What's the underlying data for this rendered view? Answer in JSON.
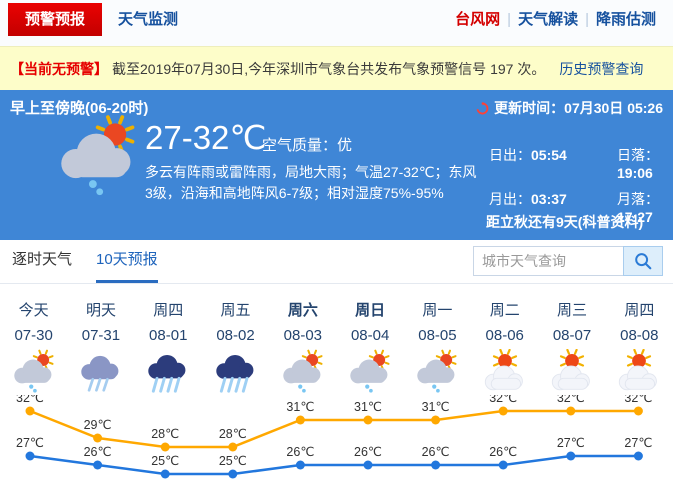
{
  "nav": {
    "tabs": [
      {
        "label": "预警预报",
        "active": true
      },
      {
        "label": "天气监测",
        "active": false
      }
    ],
    "links": [
      {
        "label": "台风网",
        "accent": "red"
      },
      {
        "label": "天气解读",
        "accent": "blue"
      },
      {
        "label": "降雨估测",
        "accent": "blue"
      }
    ]
  },
  "alert_bar": {
    "badge": "【当前无预警】",
    "text": "截至2019年07月30日,今年深圳市气象台共发布气象预警信号 197 次。",
    "link": "历史预警查询"
  },
  "current": {
    "period_title": "早上至傍晚(06-20时)",
    "update_label": "更新时间：",
    "update_value": "07月30日 05:26",
    "temp_range": "27-32℃",
    "air_quality": "空气质量：优",
    "description": "多云有阵雨或雷阵雨，局地大雨；气温27-32℃；东风3级，沿海和高地阵风6-7级；相对湿度75%-95%",
    "weather_icon": "sun-shower",
    "sun_moon": [
      {
        "label": "日出：",
        "value": "05:54"
      },
      {
        "label": "日落：",
        "value": "19:06"
      },
      {
        "label": "月出：",
        "value": "03:37"
      },
      {
        "label": "月落：",
        "value": "17:27"
      }
    ],
    "solar_term_note": "距立秋还有9天(科普资料)"
  },
  "tabs_bar": {
    "tabs": [
      {
        "label": "逐时天气",
        "active": false
      },
      {
        "label": "10天预报",
        "active": true
      }
    ],
    "search_placeholder": "城市天气查询",
    "search_icon": "magnifier"
  },
  "forecast": {
    "days": [
      {
        "name": "今天",
        "date": "07-30",
        "icon": "sun-shower",
        "bold": false
      },
      {
        "name": "明天",
        "date": "07-31",
        "icon": "rain",
        "bold": false
      },
      {
        "name": "周四",
        "date": "08-01",
        "icon": "heavy-rain",
        "bold": false
      },
      {
        "name": "周五",
        "date": "08-02",
        "icon": "heavy-rain",
        "bold": false
      },
      {
        "name": "周六",
        "date": "08-03",
        "icon": "sun-shower",
        "bold": true
      },
      {
        "name": "周日",
        "date": "08-04",
        "icon": "sun-shower",
        "bold": true
      },
      {
        "name": "周一",
        "date": "08-05",
        "icon": "sun-shower",
        "bold": false
      },
      {
        "name": "周二",
        "date": "08-06",
        "icon": "sun-cloud",
        "bold": false
      },
      {
        "name": "周三",
        "date": "08-07",
        "icon": "sun-cloud",
        "bold": false
      },
      {
        "name": "周四",
        "date": "08-08",
        "icon": "sun-cloud",
        "bold": false
      }
    ]
  },
  "chart_data": {
    "type": "line",
    "categories": [
      "07-30",
      "07-31",
      "08-01",
      "08-02",
      "08-03",
      "08-04",
      "08-05",
      "08-06",
      "08-07",
      "08-08"
    ],
    "series": [
      {
        "name": "high-temp",
        "color": "#ffa800",
        "values": [
          32,
          29,
          28,
          28,
          31,
          31,
          31,
          32,
          32,
          32
        ]
      },
      {
        "name": "low-temp",
        "color": "#2277dd",
        "values": [
          27,
          26,
          25,
          25,
          26,
          26,
          26,
          26,
          27,
          27
        ]
      }
    ],
    "unit": "℃",
    "ylim": [
      24,
      33
    ],
    "grid": false,
    "legend": "none",
    "point_labels": true
  },
  "colors": {
    "panel_blue": "#3f86d6",
    "tab_red": "#d40000",
    "alert_yellow": "#fdfdc9",
    "link_blue": "#16519e",
    "high_line": "#ffa800",
    "low_line": "#2277dd"
  }
}
